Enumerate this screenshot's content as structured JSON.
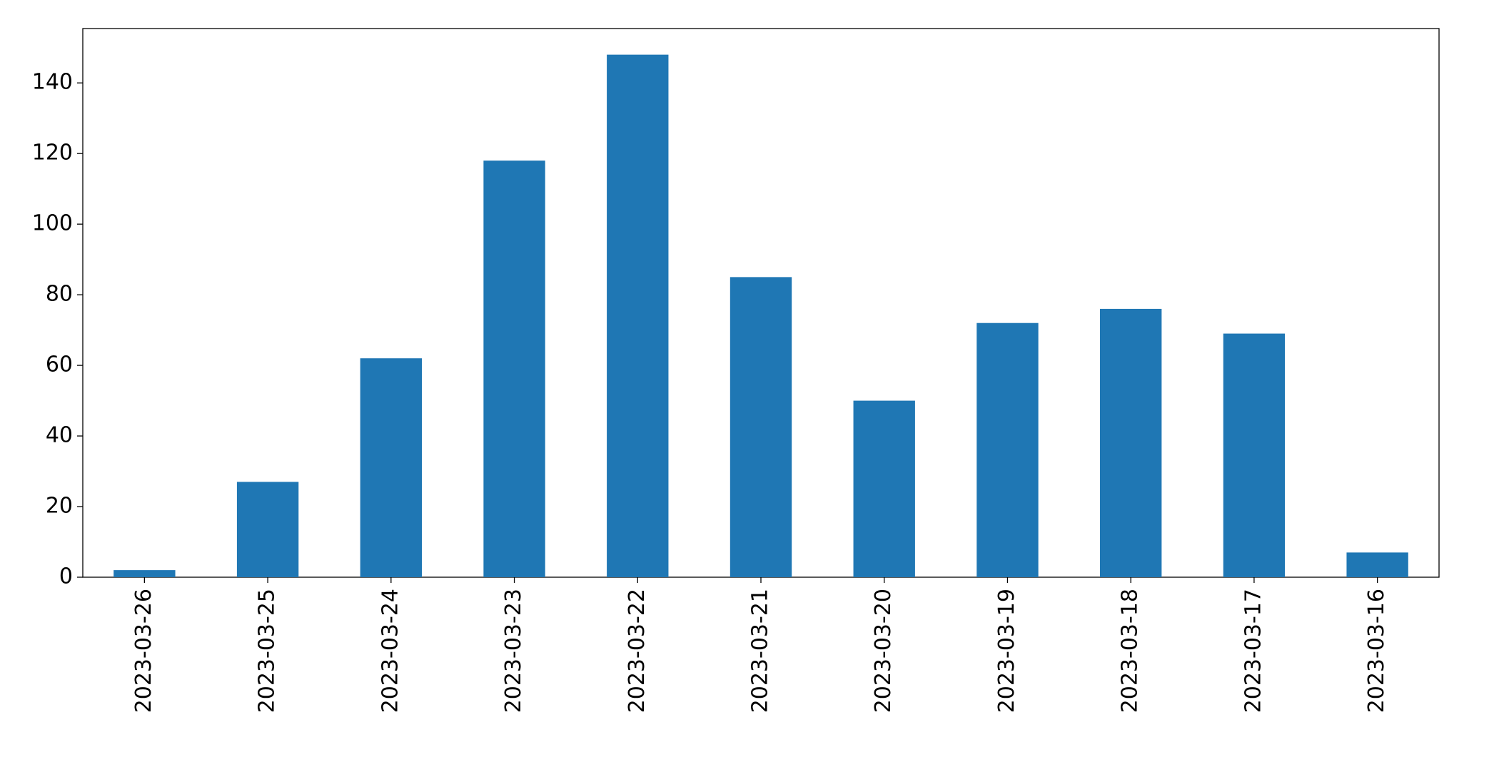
{
  "chart_data": {
    "type": "bar",
    "categories": [
      "2023-03-26",
      "2023-03-25",
      "2023-03-24",
      "2023-03-23",
      "2023-03-22",
      "2023-03-21",
      "2023-03-20",
      "2023-03-19",
      "2023-03-18",
      "2023-03-17",
      "2023-03-16"
    ],
    "values": [
      2,
      27,
      62,
      118,
      148,
      85,
      50,
      72,
      76,
      69,
      7
    ],
    "color": "#1f77b4",
    "ylim": [
      0,
      155.4
    ],
    "yticks": [
      0,
      20,
      40,
      60,
      80,
      100,
      120,
      140
    ],
    "grid": false
  }
}
